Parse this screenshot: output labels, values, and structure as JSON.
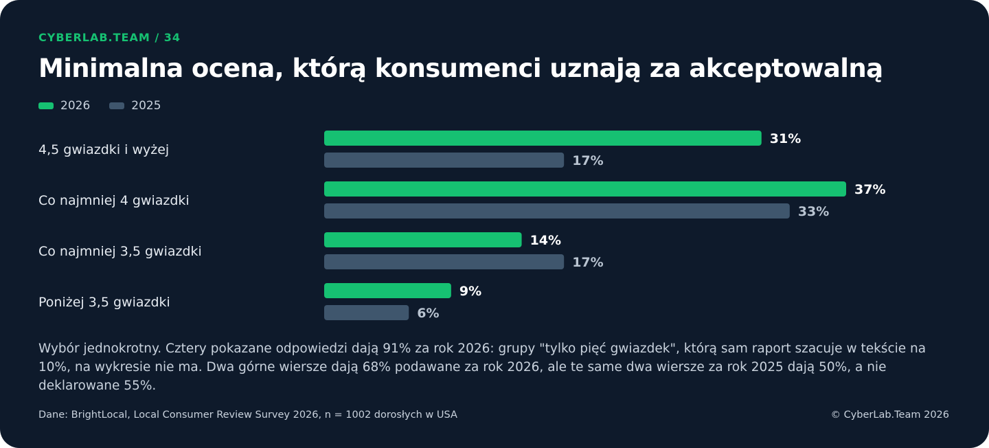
{
  "header": {
    "kicker": "CYBERLAB.TEAM / 34",
    "title": "Minimalna ocena, którą konsumenci uznają za akceptowalną"
  },
  "colors": {
    "background": "#0e1a2b",
    "accent": "#16c172",
    "series_2026": "#16c172",
    "series_2025": "#3f566d",
    "text_muted": "#c9d2dd",
    "label_2025": "#b9c4d1"
  },
  "chart_data": {
    "type": "bar",
    "orientation": "horizontal",
    "categories": [
      "4,5 gwiazdki i wyżej",
      "Co najmniej 4 gwiazdki",
      "Co najmniej 3,5 gwiazdki",
      "Poniżej 3,5 gwiazdki"
    ],
    "series": [
      {
        "name": "2026",
        "values": [
          31,
          37,
          14,
          9
        ],
        "labels": [
          "31%",
          "37%",
          "14%",
          "9%"
        ]
      },
      {
        "name": "2025",
        "values": [
          17,
          33,
          17,
          6
        ],
        "labels": [
          "17%",
          "33%",
          "17%",
          "6%"
        ]
      }
    ],
    "unit": "%",
    "xlim": [
      0,
      37
    ],
    "grid": false,
    "legend_placement": "top-left"
  },
  "note": "Wybór jednokrotny. Cztery pokazane odpowiedzi dają 91% za rok 2026: grupy \"tylko pięć gwiazdek\", którą sam raport szacuje w tekście na 10%, na wykresie nie ma. Dwa górne wiersze dają 68% podawane za rok 2026, ale te same dwa wiersze za rok 2025 dają 50%, a nie deklarowane 55%.",
  "footer": {
    "source": "Dane: BrightLocal, Local Consumer Review Survey 2026, n = 1002 dorosłych w USA",
    "copyright": "© CyberLab.Team  2026"
  }
}
